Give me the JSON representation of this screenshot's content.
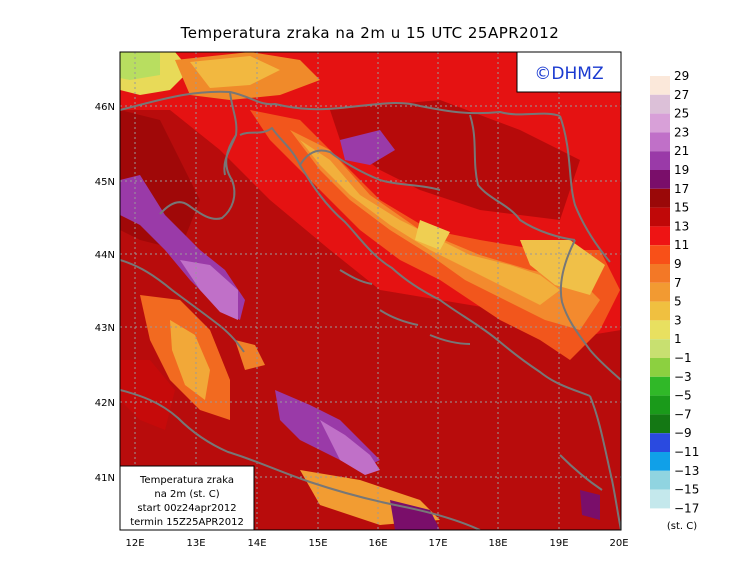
{
  "title": "Temperatura zraka na 2m u 15 UTC 25APR2012",
  "logo_text": "©DHMZ",
  "info_box": {
    "line1": "Temperatura zraka",
    "line2": "na 2m (st. C)",
    "line3": "start 00z24apr2012",
    "line4": "termin 15Z25APR2012"
  },
  "lon_labels": [
    "12E",
    "13E",
    "14E",
    "15E",
    "16E",
    "17E",
    "18E",
    "19E",
    "20E"
  ],
  "lat_labels": [
    "46N",
    "45N",
    "44N",
    "43N",
    "42N",
    "41N"
  ],
  "legend": {
    "unit": "(st. C)",
    "labels": [
      "29",
      "27",
      "25",
      "23",
      "21",
      "19",
      "17",
      "15",
      "13",
      "11",
      "9",
      "7",
      "5",
      "3",
      "1",
      "−1",
      "−3",
      "−5",
      "−7",
      "−9",
      "−11",
      "−13",
      "−15",
      "−17"
    ],
    "colors": [
      "#fbe8da",
      "#dcc0d8",
      "#d8a0d8",
      "#c070c8",
      "#9a3aa8",
      "#7a0e6a",
      "#9a0808",
      "#c00808",
      "#ee1414",
      "#f85018",
      "#f37826",
      "#f29a32",
      "#f0c040",
      "#e8e060",
      "#c8e070",
      "#8cd040",
      "#30b828",
      "#1a9a1a",
      "#147814",
      "#2a4ae0",
      "#10a0e8",
      "#90d4e0",
      "#c4e8ec",
      "#e8f8f8"
    ]
  },
  "colors": {
    "background_fill": "#b80c0c",
    "coastline": "#777777",
    "grid": "#9a9a9a"
  }
}
